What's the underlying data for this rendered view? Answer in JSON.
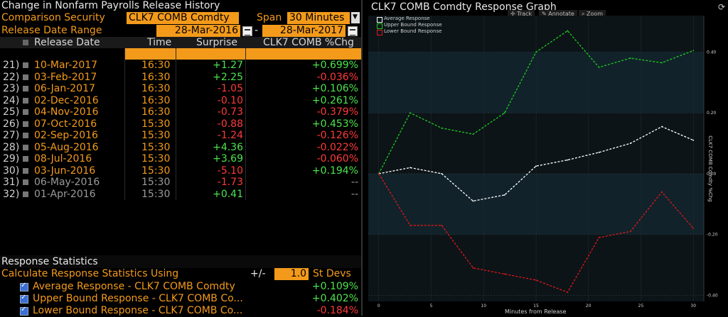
{
  "window": {
    "title": "Change in Nonfarm Payrolls Release History"
  },
  "controls": {
    "comparison_label": "Comparison Security",
    "comparison_value": "CLK7 COMB Comdty",
    "span_label": "Span",
    "span_value": "30 Minutes",
    "release_label": "Release Date Range",
    "date_from": "28-Mar-2016",
    "date_sep": "-",
    "date_to": "28-Mar-2017"
  },
  "table": {
    "headers": [
      "Release Date",
      "Time",
      "Surprise",
      "CLK7 COMB %Chg"
    ],
    "rows": [
      {
        "n": "21)",
        "date": "10-Mar-2017",
        "time": "16:30",
        "surprise": "+1.27",
        "chg": "+0.699%",
        "s": "pos",
        "c": "pos",
        "dim": false
      },
      {
        "n": "22)",
        "date": "03-Feb-2017",
        "time": "16:30",
        "surprise": "+2.25",
        "chg": "-0.036%",
        "s": "pos",
        "c": "neg",
        "dim": false
      },
      {
        "n": "23)",
        "date": "06-Jan-2017",
        "time": "16:30",
        "surprise": "-1.05",
        "chg": "+0.106%",
        "s": "neg",
        "c": "pos",
        "dim": false
      },
      {
        "n": "24)",
        "date": "02-Dec-2016",
        "time": "16:30",
        "surprise": "-0.10",
        "chg": "+0.261%",
        "s": "neg",
        "c": "pos",
        "dim": false
      },
      {
        "n": "25)",
        "date": "04-Nov-2016",
        "time": "16:30",
        "surprise": "-0.73",
        "chg": "-0.379%",
        "s": "neg",
        "c": "neg",
        "dim": false
      },
      {
        "n": "26)",
        "date": "07-Oct-2016",
        "time": "15:30",
        "surprise": "-0.88",
        "chg": "+0.453%",
        "s": "neg",
        "c": "pos",
        "dim": false
      },
      {
        "n": "27)",
        "date": "02-Sep-2016",
        "time": "15:30",
        "surprise": "-1.24",
        "chg": "-0.126%",
        "s": "neg",
        "c": "neg",
        "dim": false
      },
      {
        "n": "28)",
        "date": "05-Aug-2016",
        "time": "15:30",
        "surprise": "+4.36",
        "chg": "-0.022%",
        "s": "pos",
        "c": "neg",
        "dim": false
      },
      {
        "n": "29)",
        "date": "08-Jul-2016",
        "time": "15:30",
        "surprise": "+3.69",
        "chg": "-0.060%",
        "s": "pos",
        "c": "neg",
        "dim": false
      },
      {
        "n": "30)",
        "date": "03-Jun-2016",
        "time": "15:30",
        "surprise": "-5.10",
        "chg": "+0.194%",
        "s": "neg",
        "c": "pos",
        "dim": false
      },
      {
        "n": "31)",
        "date": "06-May-2016",
        "time": "15:30",
        "surprise": "-1.73",
        "chg": "--",
        "s": "neg",
        "c": "gray",
        "dim": true
      },
      {
        "n": "32)",
        "date": "01-Apr-2016",
        "time": "15:30",
        "surprise": "+0.41",
        "chg": "--",
        "s": "pos",
        "c": "gray",
        "dim": true
      }
    ]
  },
  "stats": {
    "title": "Response Statistics",
    "calc_label": "Calculate Response Statistics Using",
    "pm": "+/-",
    "stdev_value": "1.0",
    "stdev_label": "St Devs",
    "items": [
      {
        "label": "Average Response - CLK7 COMB Comdty",
        "value": "+0.109%",
        "c": "pos"
      },
      {
        "label": "Upper Bound Response - CLK7 COMB Co...",
        "value": "+0.402%",
        "c": "pos"
      },
      {
        "label": "Lower Bound Response - CLK7 COMB Co...",
        "value": "-0.184%",
        "c": "neg"
      }
    ]
  },
  "graph": {
    "title": "CLK7 COMB Comdty Response Graph",
    "tools": [
      "Track",
      "Annotate",
      "Zoom"
    ],
    "colors": {
      "average": "#ffffff",
      "upper": "#1ecb1e",
      "lower": "#e01818"
    }
  },
  "chart_data": {
    "type": "line",
    "xlabel": "Minutes from Release",
    "ylabel": "CLK7 COMB Comdty %Chg",
    "xlim": [
      -1,
      31
    ],
    "ylim": [
      -0.42,
      0.52
    ],
    "xticks": [
      0,
      5,
      10,
      15,
      20,
      25,
      30
    ],
    "yticks": [
      0.4,
      0.2,
      0.0,
      -0.2,
      -0.4
    ],
    "ytick_labels": [
      "0.40",
      "0.20",
      "0.00",
      "-0.20",
      "-0.40"
    ],
    "x": [
      0,
      3,
      6,
      9,
      12,
      15,
      18,
      21,
      24,
      27,
      30
    ],
    "series": [
      {
        "name": "Average Response",
        "values": [
          0.0,
          0.02,
          0.0,
          -0.09,
          -0.07,
          0.025,
          0.045,
          0.07,
          0.1,
          0.155,
          0.11
        ]
      },
      {
        "name": "Upper Bound Response",
        "values": [
          0.0,
          0.2,
          0.15,
          0.13,
          0.2,
          0.4,
          0.47,
          0.35,
          0.38,
          0.365,
          0.405
        ]
      },
      {
        "name": "Lower Bound Response",
        "values": [
          0.0,
          -0.17,
          -0.17,
          -0.31,
          -0.33,
          -0.35,
          -0.39,
          -0.21,
          -0.19,
          -0.06,
          -0.18
        ]
      }
    ],
    "grid": true,
    "legend": "top-left"
  }
}
